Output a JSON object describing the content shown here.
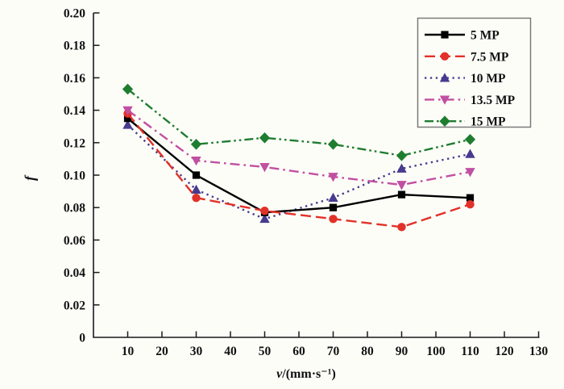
{
  "chart_data": {
    "type": "line",
    "title": "",
    "xlabel": "v/(mm·s⁻¹)",
    "xlabel_var": "v",
    "xlabel_rest": "/(mm·s⁻¹)",
    "ylabel": "f",
    "xlim": [
      0,
      130
    ],
    "ylim": [
      0,
      0.2
    ],
    "grid": false,
    "legend_position": "top-right",
    "x": [
      10,
      30,
      50,
      70,
      90,
      110
    ],
    "xticks": [
      "10",
      "20",
      "30",
      "40",
      "50",
      "60",
      "70",
      "80",
      "90",
      "100",
      "110",
      "120",
      "130"
    ],
    "yticks": [
      "0",
      "0.02",
      "0.04",
      "0.06",
      "0.08",
      "0.10",
      "0.12",
      "0.14",
      "0.16",
      "0.18",
      "0.20"
    ],
    "series": [
      {
        "name": "5 MP",
        "color": "#000000",
        "marker": "square",
        "linestyle": "solid",
        "values": [
          0.135,
          0.1,
          0.077,
          0.08,
          0.088,
          0.086
        ]
      },
      {
        "name": "7.5 MP",
        "color": "#e23128",
        "marker": "circle",
        "linestyle": "dash",
        "values": [
          0.138,
          0.086,
          0.078,
          0.073,
          0.068,
          0.082
        ]
      },
      {
        "name": "10 MP",
        "color": "#463b8e",
        "marker": "triangle-up",
        "linestyle": "dot",
        "values": [
          0.131,
          0.091,
          0.073,
          0.086,
          0.104,
          0.113
        ]
      },
      {
        "name": "13.5 MP",
        "color": "#c150a2",
        "marker": "triangle-down",
        "linestyle": "dashdot",
        "values": [
          0.14,
          0.109,
          0.105,
          0.099,
          0.094,
          0.102
        ]
      },
      {
        "name": "15 MP",
        "color": "#1f7d30",
        "marker": "diamond",
        "linestyle": "dashdotdot",
        "values": [
          0.153,
          0.119,
          0.123,
          0.119,
          0.112,
          0.122
        ]
      }
    ],
    "colors": {
      "axis": "#1a1a1a",
      "background": "#fdfdf8",
      "legend_border": "#7a7a7a"
    }
  }
}
